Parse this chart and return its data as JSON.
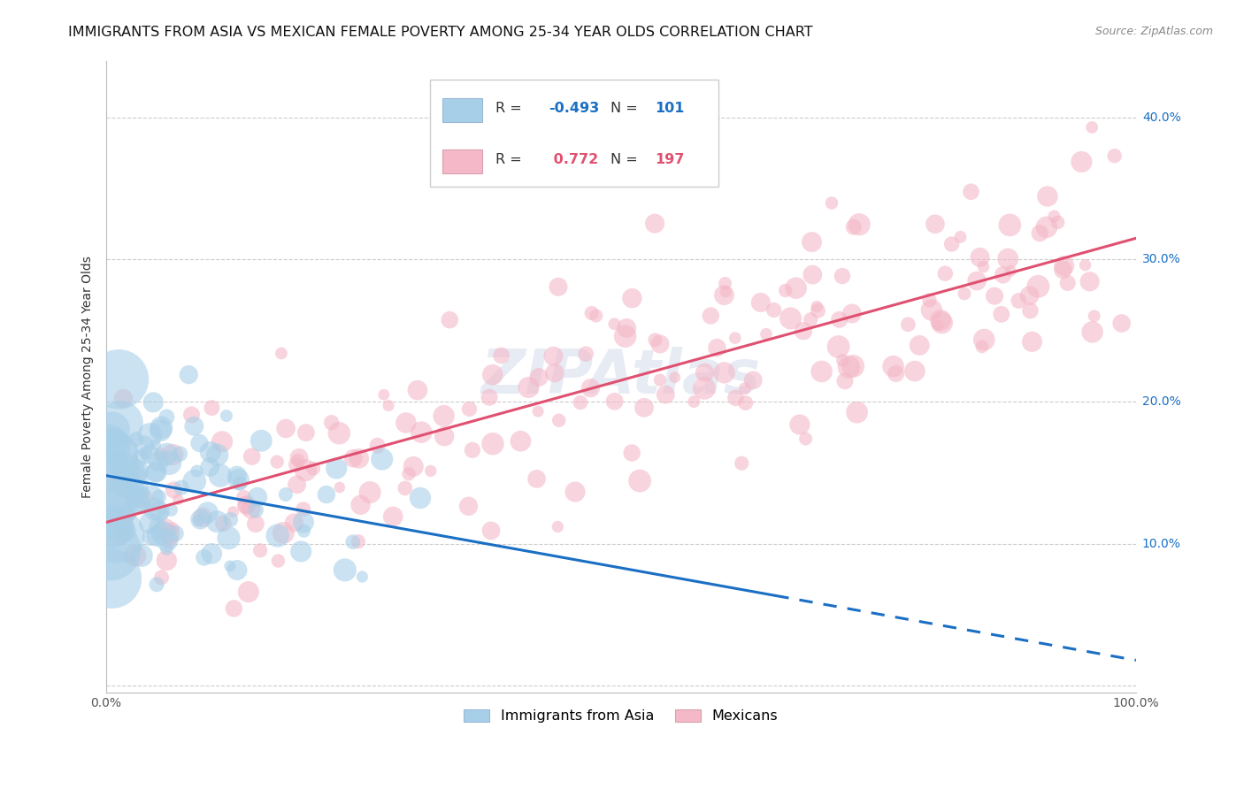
{
  "title": "IMMIGRANTS FROM ASIA VS MEXICAN FEMALE POVERTY AMONG 25-34 YEAR OLDS CORRELATION CHART",
  "source": "Source: ZipAtlas.com",
  "ylabel": "Female Poverty Among 25-34 Year Olds",
  "xlim": [
    0,
    1.0
  ],
  "ylim": [
    -0.005,
    0.44
  ],
  "x_ticks": [
    0.0,
    0.1,
    0.2,
    0.3,
    0.4,
    0.5,
    0.6,
    0.7,
    0.8,
    0.9,
    1.0
  ],
  "y_ticks": [
    0.0,
    0.1,
    0.2,
    0.3,
    0.4
  ],
  "y_tick_labels": [
    "",
    "10.0%",
    "20.0%",
    "30.0%",
    "40.0%"
  ],
  "legend_labels": [
    "Immigrants from Asia",
    "Mexicans"
  ],
  "R_asia": -0.493,
  "N_asia": 101,
  "R_mexican": 0.772,
  "N_mexican": 197,
  "color_asia": "#a8cfe8",
  "color_mexican": "#f4b8c8",
  "line_color_asia": "#1a6fc4",
  "line_color_mexican": "#e05070",
  "slope_asia": -0.13,
  "intercept_asia": 0.148,
  "slope_mex": 0.2,
  "intercept_mex": 0.115,
  "watermark": "ZIPAtlas",
  "title_fontsize": 11.5,
  "label_fontsize": 10,
  "tick_fontsize": 10,
  "legend_fontsize": 11.5
}
